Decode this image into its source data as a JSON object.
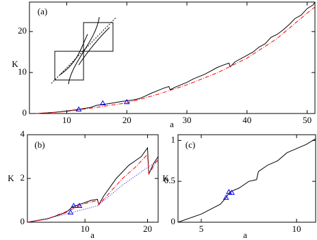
{
  "chart_data": [
    {
      "type": "line",
      "panel_label": "(a)",
      "x_label": "a",
      "y_label": "K",
      "xlim": [
        3.8,
        51.3
      ],
      "ylim": [
        0,
        27.2
      ],
      "xticks": [
        10,
        20,
        30,
        40,
        50
      ],
      "yticks": [
        0,
        10,
        20
      ],
      "series": [
        {
          "color": "#000000",
          "style": "solid",
          "x": [
            5,
            8,
            10,
            12,
            14,
            15,
            17,
            19,
            20,
            21,
            22,
            23,
            24,
            25,
            26,
            27,
            27.2,
            28,
            30,
            31,
            33,
            34,
            35,
            36,
            37,
            37.2,
            38,
            40,
            41,
            42,
            43,
            44,
            45,
            46,
            47,
            48,
            49,
            50,
            51,
            51.3
          ],
          "values": [
            0,
            0.3,
            0.6,
            1.0,
            1.5,
            2.0,
            2.4,
            2.9,
            3.1,
            3.3,
            3.6,
            4.2,
            4.9,
            5.5,
            6.1,
            6.6,
            5.8,
            6.4,
            7.6,
            8.4,
            9.6,
            10.4,
            11.2,
            11.8,
            12.3,
            11.4,
            12.6,
            14.2,
            15.0,
            16.2,
            17.0,
            18.6,
            19.3,
            20.4,
            21.7,
            23.2,
            24.0,
            25.6,
            26.5,
            27.2
          ]
        },
        {
          "color": "#ff0000",
          "style": "dashdot",
          "x": [
            5,
            10,
            15,
            20,
            25,
            30,
            35,
            40,
            45,
            50,
            51.3
          ],
          "values": [
            0,
            0.5,
            1.5,
            2.6,
            4.6,
            7.0,
            9.9,
            13.5,
            18.3,
            24.5,
            26.0
          ]
        },
        {
          "color": "#0000ff",
          "style": "triangle",
          "x": [
            12,
            16,
            20
          ],
          "values": [
            1.0,
            2.5,
            2.8
          ]
        }
      ]
    },
    {
      "type": "line",
      "panel_label": "(b)",
      "x_label": "a",
      "y_label": "K",
      "xlim": [
        0.8,
        21.7
      ],
      "ylim": [
        0,
        4
      ],
      "xticks": [
        10,
        20
      ],
      "yticks": [
        0,
        2,
        4
      ],
      "series": [
        {
          "color": "#000000",
          "style": "solid",
          "x": [
            0.8,
            4,
            6,
            7,
            8,
            9,
            10,
            11,
            12,
            12.2,
            13,
            14,
            15,
            16,
            17,
            18,
            19,
            20,
            20.2,
            21,
            21.7
          ],
          "values": [
            0,
            0.15,
            0.35,
            0.45,
            0.7,
            0.8,
            0.9,
            1.0,
            1.05,
            0.8,
            1.2,
            1.6,
            2.0,
            2.3,
            2.6,
            2.8,
            3.0,
            3.4,
            2.2,
            2.7,
            3.0
          ]
        },
        {
          "color": "#ff0000",
          "style": "dashdot",
          "x": [
            0.8,
            4,
            8,
            10,
            12,
            12.2,
            16,
            18,
            20,
            20.2,
            21.7
          ],
          "values": [
            0,
            0.15,
            0.6,
            0.85,
            1.0,
            0.8,
            2.0,
            2.5,
            3.1,
            2.2,
            2.9
          ]
        },
        {
          "color": "#0000ff",
          "style": "dotted",
          "x": [
            0.8,
            6,
            8,
            12,
            16,
            20,
            21.7
          ],
          "values": [
            0,
            0.3,
            0.45,
            0.75,
            1.7,
            2.5,
            2.8
          ]
        },
        {
          "color": "#0000ff",
          "style": "triangle",
          "x": [
            7.7,
            8.2,
            9.1
          ],
          "values": [
            0.45,
            0.75,
            0.75
          ]
        }
      ]
    },
    {
      "type": "line",
      "panel_label": "(c)",
      "x_label": "a",
      "y_label": "K",
      "xlim": [
        3.78,
        11
      ],
      "ylim": [
        0,
        1.07
      ],
      "xticks": [
        5,
        10
      ],
      "yticks": [
        0,
        0.5,
        1
      ],
      "series": [
        {
          "color": "#000000",
          "style": "solid",
          "x": [
            3.78,
            5,
            6,
            6.3,
            6.5,
            7,
            7.5,
            7.9,
            8,
            8.5,
            9,
            9.5,
            10,
            10.5,
            11
          ],
          "values": [
            0,
            0.1,
            0.22,
            0.3,
            0.37,
            0.42,
            0.5,
            0.52,
            0.62,
            0.7,
            0.75,
            0.85,
            0.9,
            0.95,
            1.02
          ]
        },
        {
          "color": "#0000ff",
          "style": "triangle",
          "x": [
            6.3,
            6.45,
            6.6
          ],
          "values": [
            0.3,
            0.37,
            0.36
          ]
        }
      ]
    }
  ]
}
